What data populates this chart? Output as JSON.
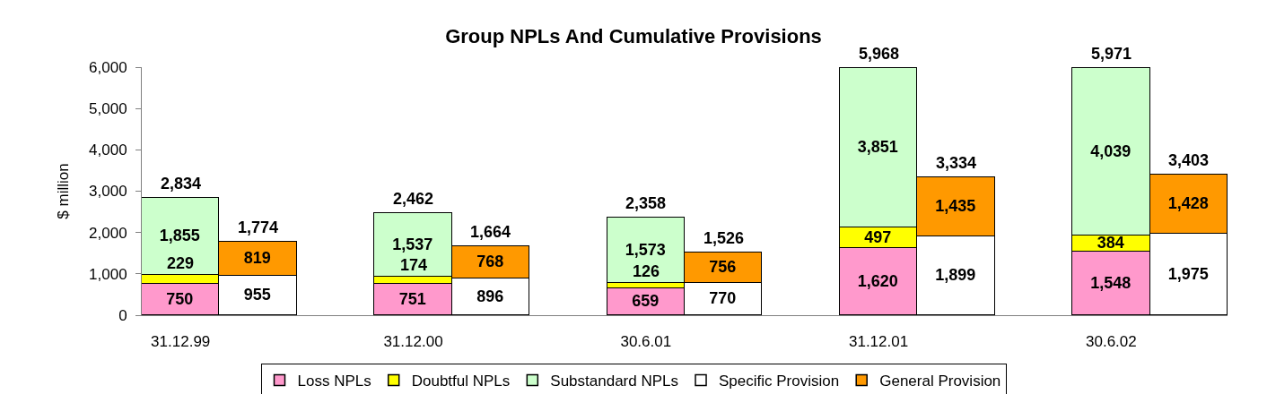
{
  "chart_data": {
    "type": "bar",
    "title": "Group NPLs And Cumulative Provisions",
    "ylabel": "$ million",
    "categories": [
      "31.12.99",
      null,
      null,
      "31.12.00",
      null,
      null,
      "30.6.01",
      null,
      null,
      "31.12.01",
      null,
      null,
      "30.6.02",
      null
    ],
    "stacked": true,
    "series": [
      {
        "name": "Loss NPLs",
        "color": "#ff99cc",
        "values": [
          750,
          null,
          null,
          751,
          null,
          null,
          659,
          null,
          null,
          1620,
          null,
          null,
          1548,
          null
        ],
        "value_labels": [
          "750",
          null,
          null,
          "751",
          null,
          null,
          "659",
          null,
          null,
          "1,620",
          null,
          null,
          "1,548",
          null
        ]
      },
      {
        "name": "Doubtful NPLs",
        "color": "#ffff00",
        "values": [
          229,
          null,
          null,
          174,
          null,
          null,
          126,
          null,
          null,
          497,
          null,
          null,
          384,
          null
        ],
        "value_labels": [
          "229",
          null,
          null,
          "174",
          null,
          null,
          "126",
          null,
          null,
          "497",
          null,
          null,
          "384",
          null
        ]
      },
      {
        "name": "Substandard NPLs",
        "color": "#ccffcc",
        "values": [
          1855,
          null,
          null,
          1537,
          null,
          null,
          1573,
          null,
          null,
          3851,
          null,
          null,
          4039,
          null
        ],
        "value_labels": [
          "1,855",
          null,
          null,
          "1,537",
          null,
          null,
          "1,573",
          null,
          null,
          "3,851",
          null,
          null,
          "4,039",
          null
        ]
      },
      {
        "name": "Specific Provision",
        "color": "#ffffff",
        "values": [
          null,
          955,
          null,
          null,
          896,
          null,
          null,
          770,
          null,
          null,
          1899,
          null,
          null,
          1975
        ],
        "value_labels": [
          null,
          "955",
          null,
          null,
          "896",
          null,
          null,
          "770",
          null,
          null,
          "1,899",
          null,
          null,
          "1,975"
        ]
      },
      {
        "name": "General Provision",
        "color": "#ff9900",
        "values": [
          null,
          819,
          null,
          null,
          768,
          null,
          null,
          756,
          null,
          null,
          1435,
          null,
          null,
          1428
        ],
        "value_labels": [
          null,
          "819",
          null,
          null,
          "768",
          null,
          null,
          "756",
          null,
          null,
          "1,435",
          null,
          null,
          "1,428"
        ]
      }
    ],
    "totals": [
      "2,834",
      "1,774",
      null,
      "2,462",
      "1,664",
      null,
      "2,358",
      "1,526",
      null,
      "5,968",
      "3,334",
      null,
      "5,971",
      "3,403"
    ],
    "ylim": [
      0,
      6000
    ],
    "yticks": [
      0,
      {
        "value": 1000,
        "label": "1,000"
      },
      {
        "value": 2000,
        "label": "2,000"
      },
      {
        "value": 3000,
        "label": "3,000"
      },
      {
        "value": 4000,
        "label": "4,000"
      },
      {
        "value": 5000,
        "label": "5,000"
      },
      {
        "value": 6000,
        "label": "6,000"
      }
    ],
    "grid": false,
    "legend": "bottom"
  }
}
